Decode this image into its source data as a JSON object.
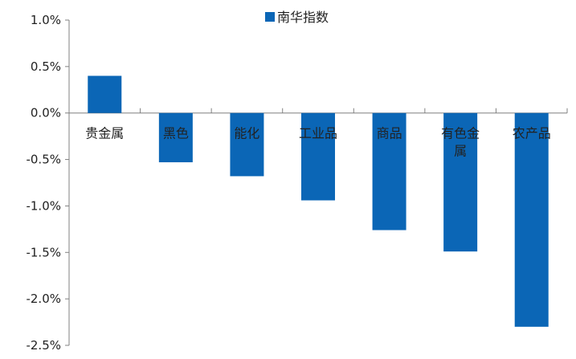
{
  "chart_data": {
    "type": "bar",
    "categories": [
      "贵金属",
      "黑色",
      "能化",
      "工业品",
      "商品",
      "有色金属",
      "农产品"
    ],
    "category_label_lines": [
      [
        "贵金属"
      ],
      [
        "黑色"
      ],
      [
        "能化"
      ],
      [
        "工业品"
      ],
      [
        "商品"
      ],
      [
        "有色金",
        "属"
      ],
      [
        "农产品"
      ]
    ],
    "series": [
      {
        "name": "南华指数",
        "values": [
          0.4,
          -0.53,
          -0.68,
          -0.94,
          -1.26,
          -1.49,
          -2.3
        ]
      }
    ],
    "y_ticks": [
      1.0,
      0.5,
      0.0,
      -0.5,
      -1.0,
      -1.5,
      -2.0,
      -2.5
    ],
    "y_tick_labels": [
      "1.0%",
      "0.5%",
      "0.0%",
      "-0.5%",
      "-1.0%",
      "-1.5%",
      "-2.0%",
      "-2.5%"
    ],
    "ylim": [
      -2.5,
      1.0
    ],
    "title": "",
    "xlabel": "",
    "ylabel": "",
    "grid": false,
    "legend_position": "top",
    "bar_color": "#0b66b6"
  }
}
